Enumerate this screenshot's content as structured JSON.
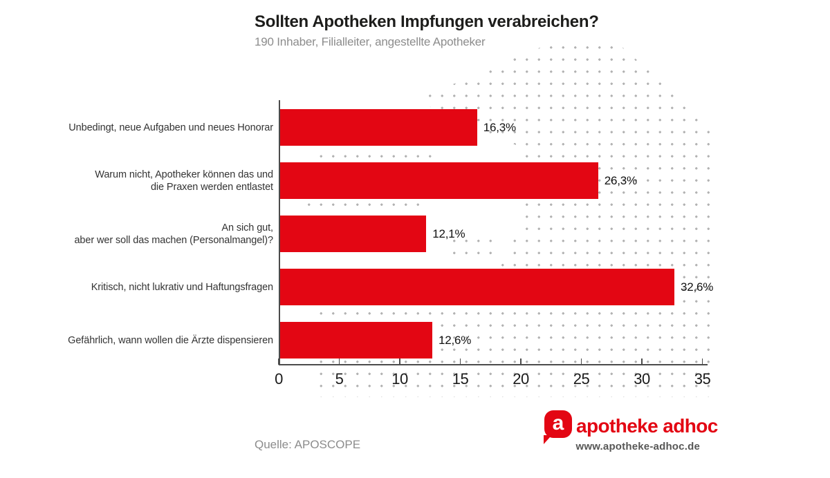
{
  "header": {
    "title": "Sollten Apotheken Impfungen verabreichen?",
    "subtitle": "190 Inhaber, Filialleiter, angestellte Apotheker"
  },
  "chart_data": {
    "type": "bar",
    "orientation": "horizontal",
    "title": "Sollten Apotheken Impfungen verabreichen?",
    "subtitle": "190 Inhaber, Filialleiter, angestellte Apotheker",
    "categories": [
      [
        "Unbedingt, neue Aufgaben und neues Honorar"
      ],
      [
        "Warum nicht, Apotheker können das und",
        "die Praxen werden entlastet"
      ],
      [
        "An sich gut,",
        "aber wer soll das machen (Personalmangel)?"
      ],
      [
        "Kritisch, nicht lukrativ und Haftungsfragen"
      ],
      [
        "Gefährlich, wann wollen die Ärzte dispensieren"
      ]
    ],
    "values": [
      16.3,
      26.3,
      12.1,
      32.6,
      12.6
    ],
    "value_labels": [
      "16,3%",
      "26,3%",
      "12,1%",
      "32,6%",
      "12,6%"
    ],
    "xlabel": "",
    "ylabel": "",
    "xlim": [
      0,
      35
    ],
    "xticks": [
      0,
      5,
      10,
      15,
      20,
      25,
      30,
      35
    ],
    "grid": false,
    "legend": false,
    "source": "Quelle: APOSCOPE"
  },
  "footer": {
    "source": "Quelle: APOSCOPE",
    "brand": "apotheke adhoc",
    "brand_url": "www.apotheke-adhoc.de",
    "logo_letter": "a"
  },
  "colors": {
    "bar": "#e30613",
    "dot": "#b3b3b3",
    "axis": "#4b4b4b",
    "title": "#1d1d1b",
    "muted": "#8c8c8c",
    "category": "#333333",
    "url": "#575756"
  }
}
